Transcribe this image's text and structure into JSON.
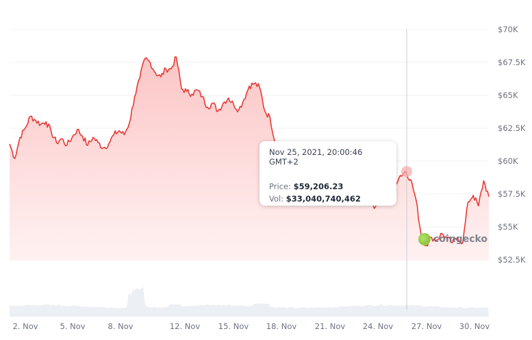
{
  "chart_data": {
    "type": "line",
    "title": "",
    "xlabel": "",
    "ylabel": "",
    "currency": "USD",
    "ylim": [
      51000,
      71000
    ],
    "grid": true,
    "y_axis_position": "right",
    "y_ticks": [
      "$70K",
      "$67.5K",
      "$65K",
      "$62.5K",
      "$60K",
      "$57.5K",
      "$55K",
      "$52.5K"
    ],
    "y_tick_values": [
      70000,
      67500,
      65000,
      62500,
      60000,
      57500,
      55000,
      52500
    ],
    "x_ticks": [
      "2. Nov",
      "5. Nov",
      "8. Nov",
      "12. Nov",
      "15. Nov",
      "18. Nov",
      "21. Nov",
      "24. Nov",
      "27. Nov",
      "30. Nov"
    ],
    "series": [
      {
        "name": "Price",
        "color": "#e53935",
        "fill": "#fdd5d5",
        "x": [
          "Nov 1",
          "Nov 1.3",
          "Nov 1.6",
          "Nov 2",
          "Nov 2.4",
          "Nov 2.8",
          "Nov 3",
          "Nov 3.3",
          "Nov 3.7",
          "Nov 4",
          "Nov 4.4",
          "Nov 4.8",
          "Nov 5",
          "Nov 5.3",
          "Nov 5.7",
          "Nov 6",
          "Nov 6.4",
          "Nov 6.8",
          "Nov 7",
          "Nov 7.4",
          "Nov 7.8",
          "Nov 8",
          "Nov 8.3",
          "Nov 8.7",
          "Nov 9",
          "Nov 9.3",
          "Nov 9.6",
          "Nov 10",
          "Nov 10.3",
          "Nov 10.6",
          "Nov 10.8",
          "Nov 11",
          "Nov 11.3",
          "Nov 11.7",
          "Nov 12",
          "Nov 12.4",
          "Nov 12.8",
          "Nov 13",
          "Nov 13.4",
          "Nov 13.8",
          "Nov 14",
          "Nov 14.4",
          "Nov 14.8",
          "Nov 15",
          "Nov 15.3",
          "Nov 15.7",
          "Nov 16",
          "Nov 16.3",
          "Nov 16.6",
          "Nov 17",
          "Nov 17.4",
          "Nov 17.8",
          "Nov 18",
          "Nov 18.4",
          "Nov 18.8",
          "Nov 19",
          "Nov 19.4",
          "Nov 19.8",
          "Nov 20",
          "Nov 20.4",
          "Nov 20.8",
          "Nov 21",
          "Nov 21.4",
          "Nov 21.8",
          "Nov 22",
          "Nov 22.4",
          "Nov 22.8",
          "Nov 23",
          "Nov 23.4",
          "Nov 23.8",
          "Nov 24",
          "Nov 24.4",
          "Nov 24.8",
          "Nov 25",
          "Nov 25.3",
          "Nov 25.6",
          "Nov 25.85",
          "Nov 26",
          "Nov 26.3",
          "Nov 26.6",
          "Nov 27",
          "Nov 27.4",
          "Nov 27.8",
          "Nov 28",
          "Nov 28.4",
          "Nov 28.8",
          "Nov 29",
          "Nov 29.3",
          "Nov 29.6",
          "Nov 30",
          "Nov 30.3",
          "Nov 30.6",
          "Nov 30.9"
        ],
        "values": [
          61300,
          60200,
          61800,
          62500,
          63400,
          63100,
          62800,
          63000,
          62200,
          61400,
          61700,
          61200,
          61800,
          62400,
          61900,
          61200,
          61800,
          61400,
          61000,
          61300,
          62000,
          62300,
          62000,
          62900,
          64900,
          66300,
          67800,
          67500,
          66700,
          66400,
          67000,
          67000,
          67900,
          65500,
          65300,
          65100,
          65400,
          64900,
          64100,
          64400,
          63800,
          64400,
          64800,
          64300,
          63900,
          64700,
          65700,
          65900,
          65600,
          63800,
          63300,
          61400,
          60400,
          59800,
          60100,
          59600,
          58400,
          59300,
          58900,
          58300,
          58700,
          57300,
          59200,
          58800,
          57800,
          58400,
          57200,
          57900,
          56900,
          57300,
          56400,
          57400,
          57100,
          57800,
          58300,
          58900,
          59206,
          58600,
          57100,
          54400,
          53600,
          54200,
          54000,
          54500,
          54100,
          53800,
          54200,
          53800,
          56900,
          57400,
          56600,
          58500,
          57300
        ]
      }
    ],
    "volume_series": {
      "name": "Volume",
      "color": "#eceff3",
      "description": "Volume bars along bottom, relatively flat with a spike around Nov 9-10"
    },
    "crosshair": {
      "x_label": "Nov 25, 2021, 20:00:46 GMT+2",
      "price": 59206.23
    },
    "legend": null
  },
  "tooltip": {
    "date": "Nov 25, 2021, 20:00:46 GMT+2",
    "price_label": "Price:",
    "price_value": "$59,206.23",
    "vol_label": "Vol:",
    "vol_value": "$33,040,740,462"
  },
  "watermark": {
    "text": "coingecko",
    "icon": "gecko-logo-icon"
  },
  "colors": {
    "line": "#e53935",
    "fill_top": "#fcc9c9",
    "fill_bottom": "#fff3f3",
    "grid": "#f1f2f4",
    "axis_text": "#6b7280",
    "volume": "#eceff3",
    "crosshair": "#c9ccd1"
  }
}
